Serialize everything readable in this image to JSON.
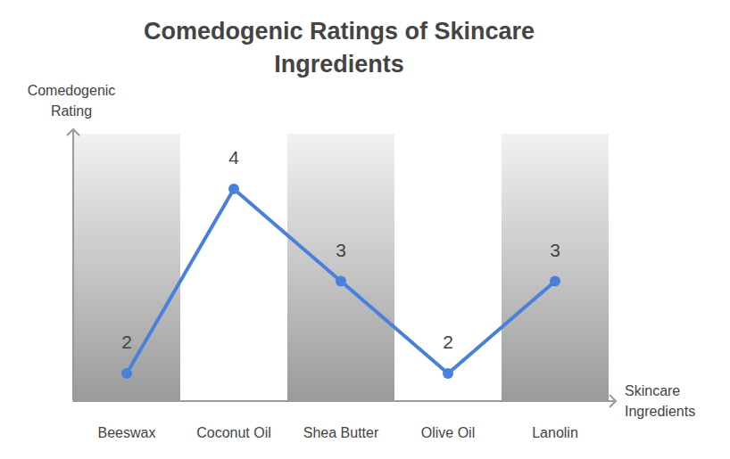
{
  "chart_data": {
    "type": "line",
    "title": "Comedogenic Ratings of Skincare Ingredients",
    "x_label": "Skincare Ingredients",
    "y_label": "Comedogenic Rating",
    "categories": [
      "Beeswax",
      "Coconut Oil",
      "Shea Butter",
      "Olive Oil",
      "Lanolin"
    ],
    "values": [
      2,
      4,
      3,
      2,
      3
    ],
    "color": "#4a80dd",
    "marker": "circle",
    "ylim": [
      1.7,
      4.6
    ],
    "yticks": [],
    "tick_labels": "x",
    "data_labels": true,
    "grid": false
  }
}
